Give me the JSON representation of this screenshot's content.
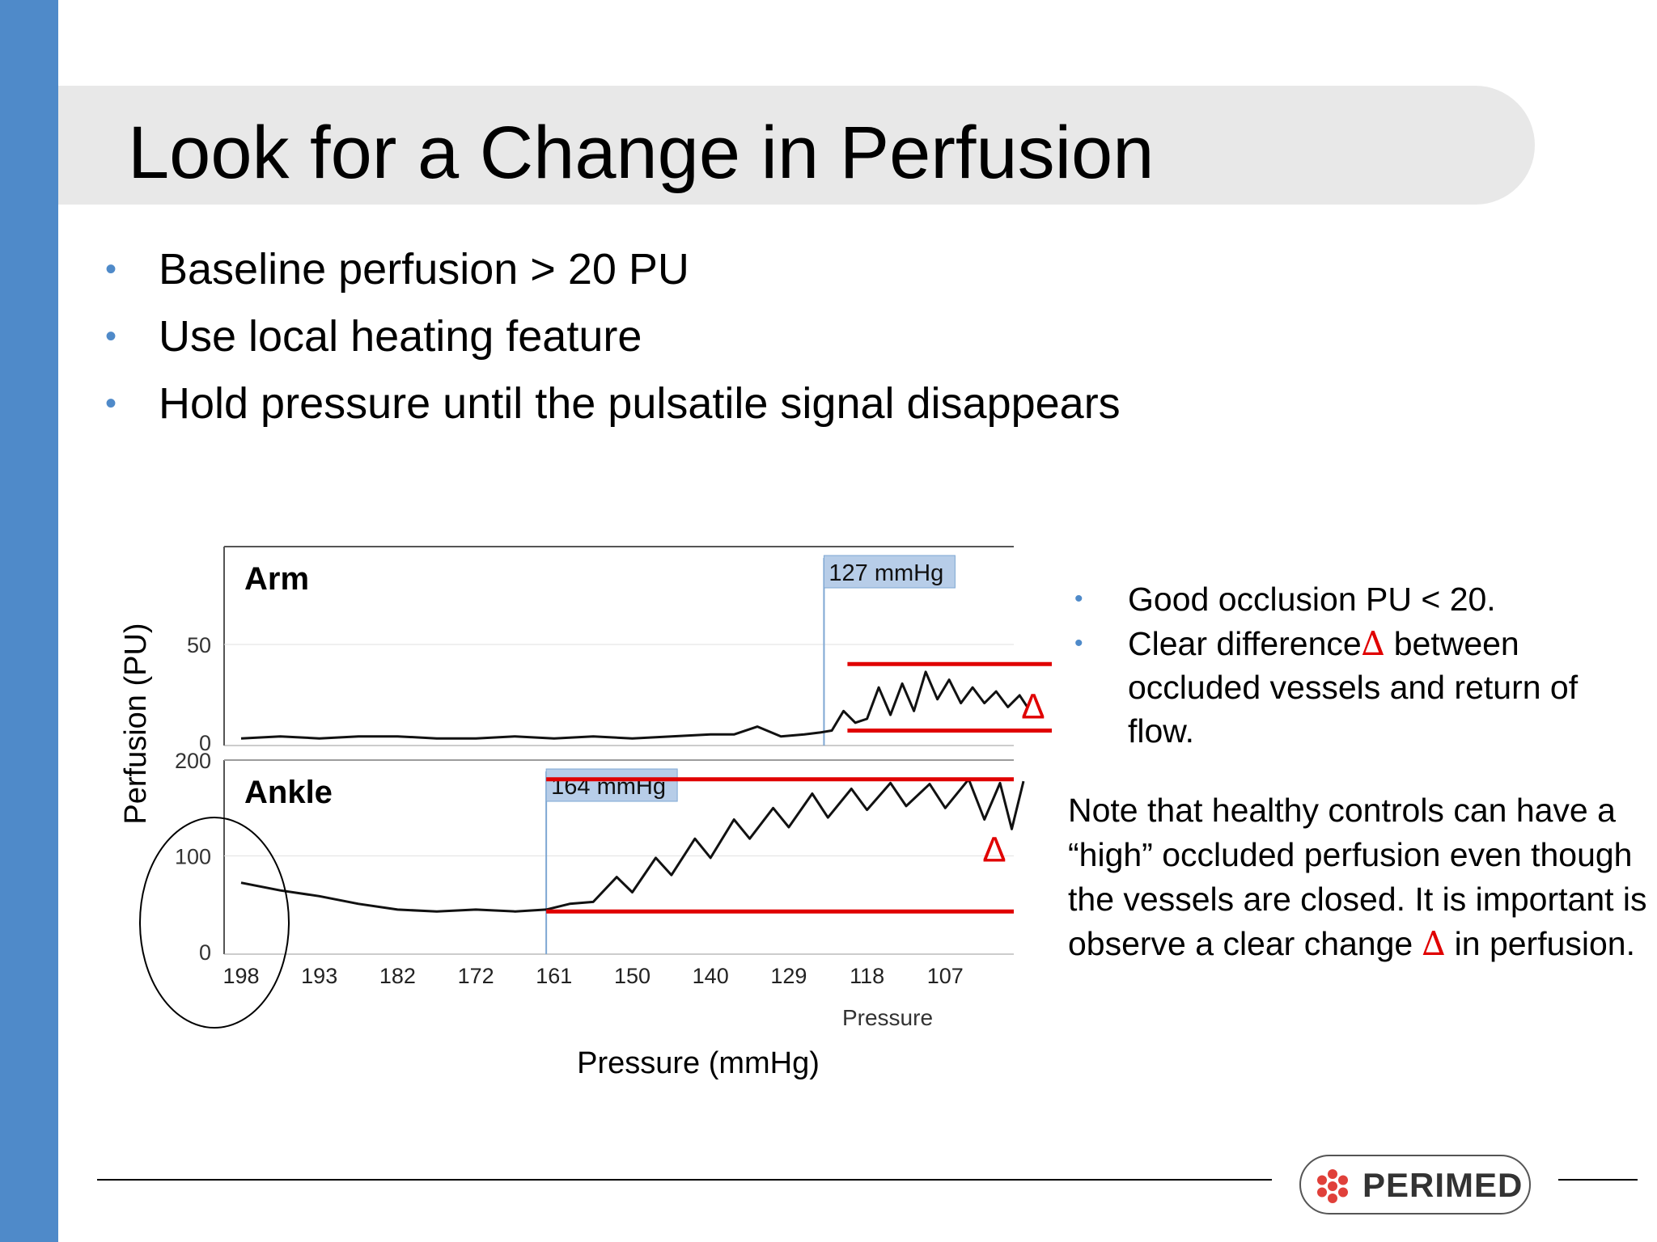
{
  "slide": {
    "title": "Look for a Change in Perfusion",
    "bullets": [
      "Baseline perfusion > 20 PU",
      "Use local heating feature",
      "Hold pressure until the pulsatile signal disappears"
    ],
    "bullet_glyph": "•",
    "side_notes": {
      "bullets": [
        {
          "text_before": "Good occlusion PU < 20.",
          "delta": "",
          "text_after": ""
        },
        {
          "text_before": "Clear difference",
          "delta": "∆",
          "text_after": " between occluded vessels and return of flow."
        }
      ],
      "note_before": "Note that healthy controls can have a “high” occluded perfusion even though the vessels are closed. It is important is observe a clear change ",
      "note_delta": "∆",
      "note_after": "  in perfusion."
    },
    "logo_text": "PERIMED",
    "colors": {
      "accent": "#4f8ac9",
      "delta": "#e00000",
      "title_band": "#e8e8e8"
    }
  },
  "chart_data": {
    "type": "line",
    "xlabel": "Pressure (mmHg)",
    "ylabel": "Perfusion (PU)",
    "inner_xlabel": "Pressure",
    "x_ticks": [
      "198",
      "193",
      "182",
      "172",
      "161",
      "150",
      "140",
      "129",
      "118",
      "107"
    ],
    "x_reversed": true,
    "delta_symbol": "∆",
    "panels": [
      {
        "name": "Arm",
        "ylim": [
          0,
          100
        ],
        "y_ticks": [
          0,
          50
        ],
        "occlusion_label": "127 mmHg",
        "occlusion_index": 7.45,
        "levels": [
          40,
          6
        ],
        "series": {
          "x_index": [
            0,
            0.5,
            1,
            1.5,
            2,
            2.5,
            3,
            3.5,
            4,
            4.5,
            5,
            5.5,
            6,
            6.3,
            6.6,
            6.9,
            7.2,
            7.4,
            7.55,
            7.7,
            7.85,
            8.0,
            8.15,
            8.3,
            8.45,
            8.6,
            8.75,
            8.9,
            9.05,
            9.2,
            9.35,
            9.5,
            9.65,
            9.8,
            9.95,
            10.05
          ],
          "y": [
            2,
            3,
            2,
            3,
            3,
            2,
            2,
            3,
            2,
            3,
            2,
            3,
            4,
            4,
            8,
            3,
            4,
            5,
            6,
            16,
            10,
            12,
            28,
            14,
            30,
            16,
            36,
            22,
            32,
            20,
            28,
            20,
            26,
            18,
            24,
            18
          ]
        }
      },
      {
        "name": "Ankle",
        "ylim": [
          0,
          200
        ],
        "y_ticks": [
          0,
          100,
          200
        ],
        "occlusion_label": "164 mmHg",
        "occlusion_index": 3.9,
        "levels": [
          180,
          42
        ],
        "series": {
          "x_index": [
            0,
            0.5,
            1,
            1.5,
            2,
            2.5,
            3,
            3.5,
            3.9,
            4.2,
            4.5,
            4.8,
            5.0,
            5.3,
            5.5,
            5.8,
            6.0,
            6.3,
            6.5,
            6.8,
            7.0,
            7.3,
            7.5,
            7.8,
            8.0,
            8.3,
            8.5,
            8.8,
            9.0,
            9.3,
            9.5,
            9.7,
            9.85,
            10.0
          ],
          "y": [
            72,
            64,
            58,
            50,
            44,
            42,
            44,
            42,
            44,
            50,
            52,
            78,
            62,
            98,
            80,
            118,
            98,
            138,
            118,
            150,
            130,
            165,
            140,
            170,
            148,
            176,
            152,
            175,
            150,
            180,
            138,
            176,
            128,
            178
          ]
        }
      }
    ]
  }
}
